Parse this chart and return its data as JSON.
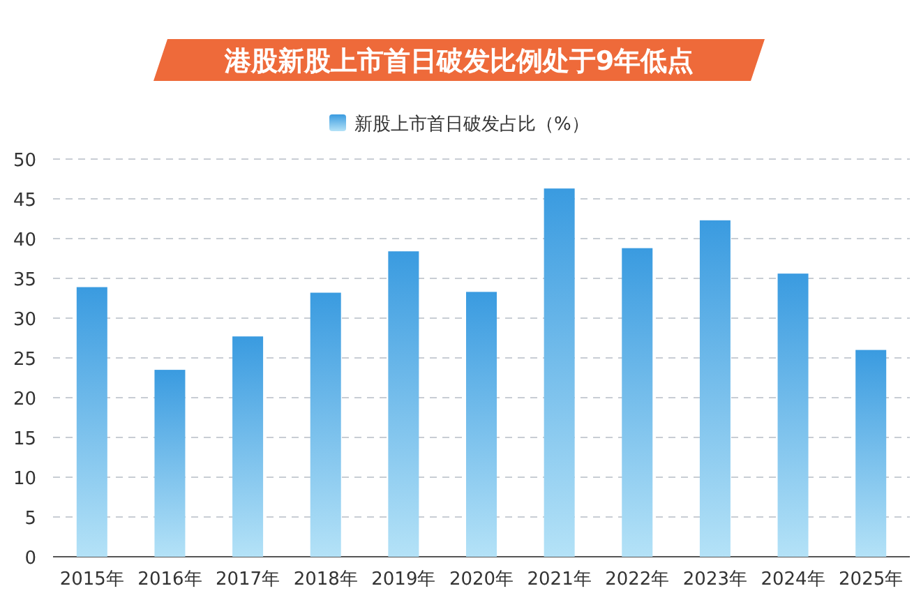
{
  "chart_data": {
    "type": "bar",
    "title": "港股新股上市首日破发比例处于9年低点",
    "categories": [
      "2015年",
      "2016年",
      "2017年",
      "2018年",
      "2019年",
      "2020年",
      "2021年",
      "2022年",
      "2023年",
      "2024年",
      "2025年"
    ],
    "series": [
      {
        "name": "新股上市首日破发占比（%）",
        "color": "#3a9be0",
        "values": [
          33.9,
          23.5,
          27.7,
          33.2,
          38.4,
          33.3,
          46.3,
          38.8,
          42.3,
          35.6,
          26.0
        ]
      }
    ],
    "ylim": [
      0,
      50
    ],
    "yticks": [
      0,
      5,
      10,
      15,
      20,
      25,
      30,
      35,
      40,
      45,
      50
    ],
    "grid": "y",
    "legend": "top"
  }
}
